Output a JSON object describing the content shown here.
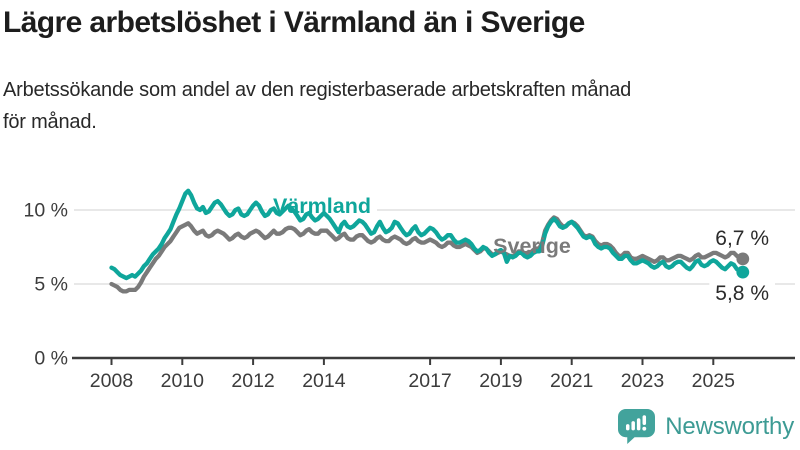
{
  "header": {
    "title": "Lägre arbetslöshet i Värmland än i Sverige",
    "subtitle": "Arbetssökande som andel av den registerbaserade arbetskraften månad\nför månad."
  },
  "footer": {
    "brand": "Newsworthy"
  },
  "colors": {
    "varmland": "#0fa69b",
    "sverige": "#7a7a7a",
    "grid": "#d9d9d9",
    "axis": "#3c3c3c",
    "tick_text": "#3c3c3c",
    "annotation_text": "#2b2b2b",
    "logo": "#42a39c"
  },
  "chart_data": {
    "type": "line",
    "title": "Lägre arbetslöshet i Värmland än i Sverige",
    "subtitle": "Arbetssökande som andel av den registerbaserade arbetskraften månad för månad.",
    "x_unit": "month",
    "x_range": [
      "2008-01",
      "2025-11"
    ],
    "x_tick_years": [
      2008,
      2010,
      2012,
      2014,
      2017,
      2019,
      2021,
      2023,
      2025
    ],
    "y_ticks": [
      {
        "value": 0,
        "label": "0 %"
      },
      {
        "value": 5,
        "label": "5 %"
      },
      {
        "value": 10,
        "label": "10 %"
      }
    ],
    "ylim": [
      0,
      13.4
    ],
    "grid": "horizontal",
    "legend_position": "inline-labels",
    "series": [
      {
        "name": "Sverige",
        "color": "#7a7a7a",
        "end_label": "6,7 %",
        "values": [
          5.0,
          4.9,
          4.8,
          4.6,
          4.5,
          4.5,
          4.6,
          4.6,
          4.6,
          4.8,
          5.1,
          5.5,
          5.8,
          6.1,
          6.4,
          6.7,
          6.9,
          7.2,
          7.5,
          7.7,
          7.9,
          8.2,
          8.5,
          8.8,
          8.9,
          9.0,
          9.1,
          8.9,
          8.6,
          8.4,
          8.5,
          8.6,
          8.3,
          8.2,
          8.3,
          8.5,
          8.6,
          8.5,
          8.4,
          8.2,
          8.0,
          8.1,
          8.3,
          8.4,
          8.2,
          8.1,
          8.2,
          8.4,
          8.5,
          8.6,
          8.5,
          8.3,
          8.1,
          8.2,
          8.4,
          8.6,
          8.4,
          8.4,
          8.5,
          8.7,
          8.8,
          8.8,
          8.7,
          8.5,
          8.3,
          8.4,
          8.6,
          8.7,
          8.5,
          8.4,
          8.4,
          8.6,
          8.6,
          8.6,
          8.4,
          8.2,
          8.0,
          8.1,
          8.3,
          8.4,
          8.1,
          8.0,
          8.0,
          8.2,
          8.3,
          8.3,
          8.1,
          7.9,
          7.8,
          7.9,
          8.1,
          8.2,
          8.0,
          7.9,
          7.9,
          8.1,
          8.2,
          8.1,
          8.0,
          7.8,
          7.7,
          7.8,
          8.0,
          8.1,
          7.9,
          7.8,
          7.8,
          7.9,
          8.0,
          7.9,
          7.8,
          7.6,
          7.5,
          7.6,
          7.8,
          7.8,
          7.6,
          7.5,
          7.5,
          7.6,
          7.7,
          7.6,
          7.5,
          7.3,
          7.1,
          7.2,
          7.4,
          7.4,
          7.2,
          7.0,
          7.0,
          7.1,
          7.2,
          7.1,
          7.0,
          6.9,
          6.9,
          7.0,
          7.2,
          7.2,
          7.0,
          7.0,
          7.1,
          7.3,
          7.4,
          7.4,
          7.8,
          8.6,
          9.0,
          9.3,
          9.5,
          9.4,
          9.1,
          8.9,
          8.9,
          9.1,
          9.2,
          9.1,
          8.9,
          8.6,
          8.3,
          8.2,
          8.3,
          8.2,
          7.9,
          7.7,
          7.6,
          7.7,
          7.7,
          7.6,
          7.4,
          7.1,
          6.9,
          6.9,
          7.1,
          7.1,
          6.8,
          6.7,
          6.7,
          6.8,
          6.9,
          6.8,
          6.7,
          6.6,
          6.5,
          6.6,
          6.8,
          6.8,
          6.6,
          6.6,
          6.7,
          6.8,
          6.9,
          6.9,
          6.8,
          6.7,
          6.6,
          6.7,
          6.9,
          7.0,
          6.8,
          6.8,
          6.9,
          7.0,
          7.1,
          7.1,
          7.0,
          6.9,
          6.8,
          6.9,
          7.1,
          7.1,
          6.9,
          6.8,
          6.7
        ]
      },
      {
        "name": "Värmland",
        "color": "#0fa69b",
        "end_label": "5,8 %",
        "values": [
          6.1,
          6.0,
          5.8,
          5.6,
          5.5,
          5.4,
          5.5,
          5.6,
          5.5,
          5.7,
          5.9,
          6.2,
          6.4,
          6.7,
          7.0,
          7.2,
          7.4,
          7.7,
          8.1,
          8.4,
          8.7,
          9.2,
          9.7,
          10.1,
          10.6,
          11.1,
          11.3,
          11.0,
          10.5,
          10.1,
          10.0,
          10.2,
          9.8,
          9.9,
          10.2,
          10.5,
          10.6,
          10.4,
          10.1,
          9.8,
          9.6,
          9.7,
          10.0,
          10.1,
          9.7,
          9.6,
          9.7,
          10.0,
          10.3,
          10.5,
          10.3,
          9.9,
          9.6,
          9.7,
          10.0,
          10.1,
          9.8,
          9.7,
          9.9,
          10.1,
          10.3,
          10.1,
          9.9,
          9.6,
          9.3,
          9.4,
          9.7,
          9.8,
          9.5,
          9.3,
          9.4,
          9.6,
          9.8,
          9.6,
          9.4,
          9.1,
          8.8,
          8.5,
          9.0,
          9.2,
          8.9,
          8.8,
          8.9,
          9.1,
          9.3,
          9.2,
          9.0,
          8.7,
          8.4,
          8.5,
          8.9,
          9.2,
          8.8,
          8.5,
          8.6,
          8.8,
          9.2,
          9.1,
          8.8,
          8.5,
          8.3,
          8.4,
          8.7,
          8.9,
          8.5,
          8.3,
          8.4,
          8.6,
          8.8,
          8.7,
          8.5,
          8.2,
          8.0,
          8.1,
          8.3,
          8.3,
          8.0,
          7.8,
          7.8,
          7.9,
          8.0,
          7.9,
          7.7,
          7.4,
          7.2,
          7.3,
          7.5,
          7.4,
          7.1,
          6.9,
          7.0,
          7.2,
          7.3,
          7.1,
          6.5,
          6.9,
          6.8,
          6.9,
          7.1,
          7.1,
          6.9,
          6.8,
          6.9,
          7.1,
          7.2,
          7.2,
          7.6,
          8.4,
          8.9,
          9.2,
          9.4,
          9.2,
          8.9,
          8.8,
          8.9,
          9.1,
          9.2,
          9.0,
          8.8,
          8.5,
          8.2,
          8.1,
          8.2,
          8.1,
          7.7,
          7.5,
          7.4,
          7.5,
          7.5,
          7.4,
          7.1,
          6.9,
          6.7,
          6.7,
          6.9,
          6.9,
          6.6,
          6.4,
          6.4,
          6.5,
          6.6,
          6.5,
          6.4,
          6.2,
          6.1,
          6.2,
          6.4,
          6.5,
          6.2,
          6.1,
          6.2,
          6.4,
          6.5,
          6.5,
          6.3,
          6.1,
          6.0,
          6.2,
          6.5,
          6.6,
          6.3,
          6.2,
          6.3,
          6.5,
          6.6,
          6.5,
          6.3,
          6.1,
          6.0,
          6.2,
          6.4,
          6.3,
          6.0,
          5.9,
          5.8
        ]
      }
    ]
  }
}
